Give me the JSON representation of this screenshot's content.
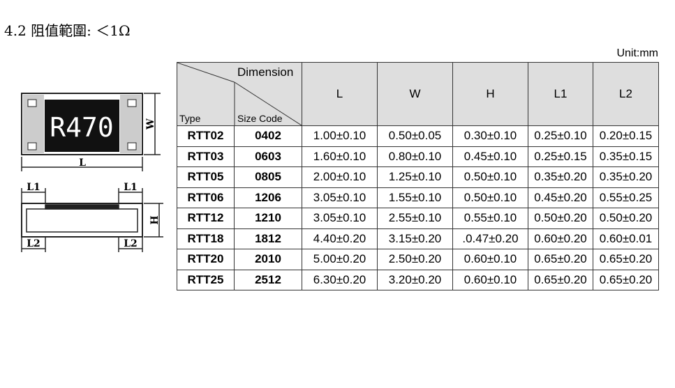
{
  "heading": "4.2 阻值範圍: ＜1Ω",
  "unit": "Unit:mm",
  "diagram": {
    "marking": "R470",
    "width_label": "W",
    "length_label": "L",
    "l1_left": "L1",
    "l1_right": "L1",
    "height_label": "H",
    "l2_left": "L2",
    "l2_right": "L2"
  },
  "table": {
    "dimension_label": "Dimension",
    "type_label": "Type",
    "size_label": "Size Code",
    "columns": [
      "L",
      "W",
      "H",
      "L1",
      "L2"
    ],
    "rows": [
      [
        "RTT02",
        "0402",
        "1.00±0.10",
        "0.50±0.05",
        "0.30±0.10",
        "0.25±0.10",
        "0.20±0.15"
      ],
      [
        "RTT03",
        "0603",
        "1.60±0.10",
        "0.80±0.10",
        "0.45±0.10",
        "0.25±0.15",
        "0.35±0.15"
      ],
      [
        "RTT05",
        "0805",
        "2.00±0.10",
        "1.25±0.10",
        "0.50±0.10",
        "0.35±0.20",
        "0.35±0.20"
      ],
      [
        "RTT06",
        "1206",
        "3.05±0.10",
        "1.55±0.10",
        "0.50±0.10",
        "0.45±0.20",
        "0.55±0.25"
      ],
      [
        "RTT12",
        "1210",
        "3.05±0.10",
        "2.55±0.10",
        "0.55±0.10",
        "0.50±0.20",
        "0.50±0.20"
      ],
      [
        "RTT18",
        "1812",
        "4.40±0.20",
        "3.15±0.20",
        ".0.47±0.20",
        "0.60±0.20",
        "0.60±0.01"
      ],
      [
        "RTT20",
        "2010",
        "5.00±0.20",
        "2.50±0.20",
        "0.60±0.10",
        "0.65±0.20",
        "0.65±0.20"
      ],
      [
        "RTT25",
        "2512",
        "6.30±0.20",
        "3.20±0.20",
        "0.60±0.10",
        "0.65±0.20",
        "0.65±0.20"
      ]
    ]
  }
}
